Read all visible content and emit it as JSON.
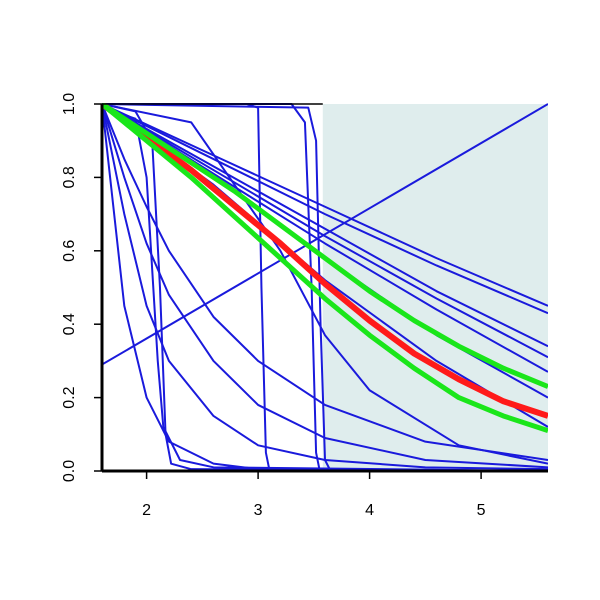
{
  "chart_data": {
    "type": "line",
    "xlim": [
      1.6,
      5.6
    ],
    "ylim": [
      0,
      1
    ],
    "xticks": [
      2,
      3,
      4,
      5
    ],
    "yticks": [
      {
        "value": 0,
        "label": "0.0"
      },
      0.2,
      0.4,
      0.6,
      0.8,
      {
        "value": 1,
        "label": "1.0"
      }
    ],
    "shaded_region": {
      "xlim": [
        3.58,
        5.6
      ],
      "color": "#dfeded"
    },
    "series": [
      {
        "color": "#1a1adc",
        "x": [
          1.6,
          5.6
        ],
        "values": [
          0.29,
          1.0
        ]
      },
      {
        "color": "#1a1adc",
        "x": [
          1.6,
          2.6,
          3.6,
          4.6,
          5.6
        ],
        "values": [
          1.0,
          0.86,
          0.72,
          0.58,
          0.45
        ]
      },
      {
        "color": "#1a1adc",
        "x": [
          1.6,
          2.6,
          3.6,
          4.6,
          5.6
        ],
        "values": [
          1.0,
          0.85,
          0.7,
          0.56,
          0.43
        ]
      },
      {
        "color": "#1a1adc",
        "x": [
          1.6,
          2.6,
          3.6,
          4.6,
          5.6
        ],
        "values": [
          1.0,
          0.83,
          0.66,
          0.49,
          0.34
        ]
      },
      {
        "color": "#1a1adc",
        "x": [
          1.6,
          2.6,
          3.6,
          4.6,
          5.6
        ],
        "values": [
          1.0,
          0.82,
          0.64,
          0.47,
          0.31
        ]
      },
      {
        "color": "#1a1adc",
        "x": [
          1.6,
          2.6,
          3.6,
          4.6,
          5.6
        ],
        "values": [
          1.0,
          0.81,
          0.62,
          0.44,
          0.27
        ]
      },
      {
        "color": "#1a1adc",
        "x": [
          1.6,
          2.6,
          3.6,
          4.6,
          5.6
        ],
        "values": [
          1.0,
          0.8,
          0.58,
          0.37,
          0.2
        ]
      },
      {
        "color": "#1a1adc",
        "x": [
          1.6,
          2.6,
          3.6,
          4.6,
          5.6
        ],
        "values": [
          1.0,
          0.78,
          0.52,
          0.3,
          0.12
        ]
      },
      {
        "color": "#1a1adc",
        "x": [
          1.6,
          2.4,
          3.2,
          3.6,
          4.0,
          4.8,
          5.6
        ],
        "values": [
          1.0,
          0.95,
          0.6,
          0.37,
          0.22,
          0.07,
          0.02
        ]
      },
      {
        "color": "#1a1adc",
        "x": [
          1.6,
          1.8,
          2.0,
          2.2,
          2.6,
          3.0,
          3.6,
          4.5,
          5.6
        ],
        "values": [
          1.0,
          0.45,
          0.2,
          0.08,
          0.02,
          0.005,
          0,
          0,
          0
        ]
      },
      {
        "color": "#1a1adc",
        "x": [
          1.6,
          1.8,
          2.0,
          2.2,
          2.6,
          3.0,
          3.6,
          4.5,
          5.6
        ],
        "values": [
          1.0,
          0.7,
          0.45,
          0.3,
          0.15,
          0.07,
          0.03,
          0.01,
          0.005
        ]
      },
      {
        "color": "#1a1adc",
        "x": [
          1.6,
          1.8,
          2.0,
          2.2,
          2.6,
          3.0,
          3.6,
          4.5,
          5.6
        ],
        "values": [
          1.0,
          0.8,
          0.62,
          0.48,
          0.3,
          0.18,
          0.09,
          0.03,
          0.01
        ]
      },
      {
        "color": "#1a1adc",
        "x": [
          1.6,
          1.8,
          2.0,
          2.2,
          2.6,
          3.0,
          3.6,
          4.5,
          5.6
        ],
        "values": [
          1.0,
          0.85,
          0.72,
          0.6,
          0.42,
          0.3,
          0.18,
          0.08,
          0.03
        ]
      },
      {
        "color": "#1a1adc",
        "x": [
          1.6,
          1.9,
          2.0,
          2.05,
          2.1,
          2.15,
          2.3,
          2.6,
          5.6
        ],
        "values": [
          0.99,
          0.96,
          0.8,
          0.55,
          0.3,
          0.12,
          0.03,
          0.01,
          0
        ]
      },
      {
        "color": "#1a1adc",
        "x": [
          1.6,
          1.9,
          2.05,
          2.12,
          2.17,
          2.22,
          2.4,
          5.6
        ],
        "values": [
          1.0,
          0.98,
          0.9,
          0.5,
          0.1,
          0.02,
          0.005,
          0
        ]
      },
      {
        "color": "#1a1adc",
        "x": [
          1.6,
          2.9,
          3.0,
          3.03,
          3.07,
          3.1,
          5.6
        ],
        "values": [
          1.0,
          1.0,
          0.99,
          0.5,
          0.05,
          0.005,
          0
        ]
      },
      {
        "color": "#1a1adc",
        "x": [
          1.6,
          3.3,
          3.42,
          3.48,
          3.52,
          3.55,
          5.6
        ],
        "values": [
          1.0,
          1.0,
          0.95,
          0.5,
          0.05,
          0.005,
          0
        ]
      },
      {
        "color": "#1a1adc",
        "x": [
          1.6,
          3.45,
          3.52,
          3.56,
          3.6,
          3.65,
          5.6
        ],
        "values": [
          1.0,
          0.99,
          0.9,
          0.4,
          0.03,
          0,
          0
        ]
      },
      {
        "color": "#ff1a1a",
        "width": 6,
        "x": [
          1.6,
          2.0,
          2.4,
          2.8,
          3.2,
          3.6,
          4.0,
          4.4,
          4.8,
          5.2,
          5.6
        ],
        "values": [
          1.0,
          0.91,
          0.82,
          0.72,
          0.62,
          0.51,
          0.41,
          0.32,
          0.25,
          0.19,
          0.15
        ]
      },
      {
        "color": "#1ae61a",
        "width": 5,
        "x": [
          1.6,
          2.0,
          2.4,
          2.8,
          3.2,
          3.6,
          4.0,
          4.4,
          4.8,
          5.2,
          5.6
        ],
        "values": [
          1.0,
          0.92,
          0.84,
          0.76,
          0.67,
          0.58,
          0.49,
          0.41,
          0.34,
          0.28,
          0.23
        ]
      },
      {
        "color": "#1ae61a",
        "width": 5,
        "x": [
          1.6,
          2.0,
          2.4,
          2.8,
          3.2,
          3.6,
          4.0,
          4.4,
          4.8,
          5.2,
          5.6
        ],
        "values": [
          1.0,
          0.9,
          0.8,
          0.69,
          0.58,
          0.47,
          0.37,
          0.28,
          0.2,
          0.15,
          0.11
        ]
      }
    ]
  }
}
